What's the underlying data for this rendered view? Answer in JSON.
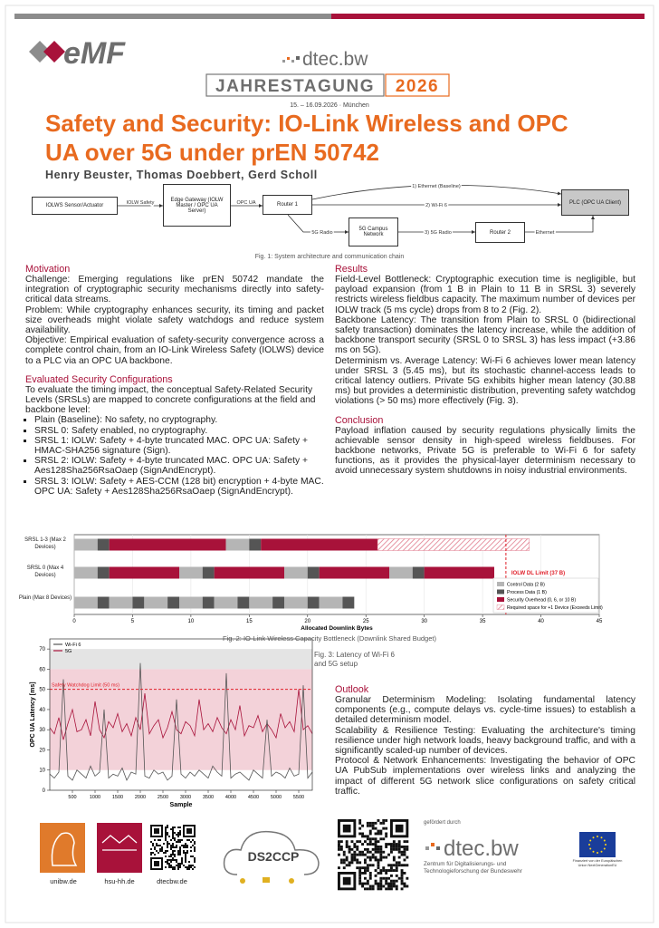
{
  "header": {
    "logo": "eMF",
    "brand": "dtec.bw",
    "event": "JAHRESTAGUNG",
    "year": "2026",
    "date": "15. – 16.09.2026 · München"
  },
  "title": "Safety and Security: IO-Link Wireless and OPC UA over 5G under prEN 50742",
  "authors": "Henry Beuster, Thomas Doebbert, Gerd Scholl",
  "figure1": {
    "nodes": [
      "IOLWS Sensor/Actuator",
      "Edge Gateway (IOLW Master / OPC UA Server)",
      "Router 1",
      "5G Campus Network",
      "Router 2",
      "PLC (OPC UA Client)"
    ],
    "edges": [
      "IOLW Safety",
      "OPC UA",
      "1) Ethernet (Baseline)",
      "2) Wi-Fi 6",
      "5G Radio",
      "3) 5G Radio",
      "Ethernet"
    ],
    "caption": "Fig. 1: System architecture and communication chain"
  },
  "motivation": {
    "heading": "Motivation",
    "paragraphs": [
      "Challenge: Emerging regulations like prEN 50742 mandate the integration of cryptographic security mechanisms directly into safety-critical data streams.",
      "Problem: While cryptography enhances security, its timing and packet size overheads might violate safety watchdogs and reduce system availability.",
      "Objective: Empirical evaluation of safety-security convergence across a complete control chain, from an IO-Link Wireless Safety (IOLWS) device to a PLC via an OPC UA backbone."
    ]
  },
  "configurations": {
    "heading": "Evaluated Security Configurations",
    "intro": "To evaluate the timing impact, the conceptual Safety-Related Security Levels (SRSLs) are mapped to concrete configurations at the field and backbone level:",
    "items": [
      "Plain (Baseline): No safety, no cryptography.",
      "SRSL 0: Safety enabled, no cryptography.",
      "SRSL 1: IOLW: Safety + 4-byte truncated MAC. OPC UA: Safety + HMAC-SHA256 signature (Sign).",
      "SRSL 2: IOLW: Safety + 4-byte truncated MAC. OPC UA: Safety + Aes128Sha256RsaOaep (SignAndEncrypt).",
      "SRSL 3: IOLW: Safety + AES-CCM (128 bit) encryption + 4-byte MAC. OPC UA: Safety + Aes128Sha256RsaOaep (SignAndEncrypt)."
    ]
  },
  "results": {
    "heading": "Results",
    "paragraphs": [
      "Field-Level Bottleneck: Cryptographic execution time is negligible, but payload expansion (from 1 B in Plain to 11 B in SRSL 3) severely restricts wireless fieldbus capacity. The maximum number of devices per IOLW track (5 ms cycle) drops from 8 to 2 (Fig. 2).",
      "Backbone Latency: The transition from Plain to SRSL 0 (bidirectional safety transaction) dominates the latency increase, while the addition of backbone transport security (SRSL 0 to SRSL 3) has less impact (+3.86 ms on 5G).",
      "Determinism vs. Average Latency: Wi-Fi 6 achieves lower mean latency under SRSL 3 (5.45 ms), but its stochastic channel-access leads to critical latency outliers. Private 5G exhibits higher mean latency (30.88 ms) but provides a deterministic distribution, preventing safety watchdog violations (> 50 ms) more effectively (Fig. 3)."
    ]
  },
  "conclusion": {
    "heading": "Conclusion",
    "paragraphs": [
      "Payload inflation caused by security regulations physically limits the achievable sensor density in high-speed wireless fieldbuses. For backbone networks, Private 5G is preferable to Wi-Fi 6 for safety functions, as it provides the physical-layer determinism necessary to avoid unnecessary system shutdowns in noisy industrial environments."
    ]
  },
  "outlook": {
    "heading": "Outlook",
    "paragraphs": [
      "Granular Determinism Modeling: Isolating fundamental latency components (e.g., compute delays vs. cycle-time issues) to establish a detailed determinism model.",
      "Scalability & Resilience Testing: Evaluating the architecture's timing resilience under high network loads, heavy background traffic, and with a significantly scaled-up number of devices.",
      "Protocol & Network Enhancements: Investigating the behavior of OPC UA PubSub implementations over wireless links and analyzing the impact of different 5G network slice configurations on safety critical traffic."
    ]
  },
  "chart_data": [
    {
      "type": "bar",
      "orientation": "horizontal",
      "stacked": true,
      "title": "Fig. 2: IO-Link Wireless Capacity Bottleneck (Downlink Shared Budget)",
      "x_label": "Allocated Downlink Bytes",
      "xlim": [
        0,
        45
      ],
      "xticks": [
        0,
        5,
        10,
        15,
        20,
        25,
        30,
        35,
        40,
        45
      ],
      "grid": true,
      "series": [
        {
          "name": "Control Data (2 B)",
          "color": "#b5b5b5"
        },
        {
          "name": "Process Data (1 B)",
          "color": "#555555"
        },
        {
          "name": "Security Overhead (0, 6, or 10 B)",
          "color": "#a8123a"
        },
        {
          "name": "Required space for +1 Device (Exceeds Limit)",
          "color": "#e07a8c",
          "hatched": true
        }
      ],
      "categories": [
        "SRSL 1-3 (Max 2 Devices)",
        "SRSL 0 (Max 4 Devices)",
        "Plain (Max 8 Devices)"
      ],
      "segments": [
        [
          {
            "series": 0,
            "value": 2
          },
          {
            "series": 1,
            "value": 1
          },
          {
            "series": 2,
            "value": 10
          },
          {
            "series": 0,
            "value": 2
          },
          {
            "series": 1,
            "value": 1
          },
          {
            "series": 2,
            "value": 10
          },
          {
            "series": 3,
            "value": 13
          }
        ],
        [
          {
            "series": 0,
            "value": 2
          },
          {
            "series": 1,
            "value": 1
          },
          {
            "series": 2,
            "value": 6
          },
          {
            "series": 0,
            "value": 2
          },
          {
            "series": 1,
            "value": 1
          },
          {
            "series": 2,
            "value": 6
          },
          {
            "series": 0,
            "value": 2
          },
          {
            "series": 1,
            "value": 1
          },
          {
            "series": 2,
            "value": 6
          },
          {
            "series": 0,
            "value": 2
          },
          {
            "series": 1,
            "value": 1
          },
          {
            "series": 2,
            "value": 6
          }
        ],
        [
          {
            "series": 0,
            "value": 2
          },
          {
            "series": 1,
            "value": 1
          },
          {
            "series": 0,
            "value": 2
          },
          {
            "series": 1,
            "value": 1
          },
          {
            "series": 0,
            "value": 2
          },
          {
            "series": 1,
            "value": 1
          },
          {
            "series": 0,
            "value": 2
          },
          {
            "series": 1,
            "value": 1
          },
          {
            "series": 0,
            "value": 2
          },
          {
            "series": 1,
            "value": 1
          },
          {
            "series": 0,
            "value": 2
          },
          {
            "series": 1,
            "value": 1
          },
          {
            "series": 0,
            "value": 2
          },
          {
            "series": 1,
            "value": 1
          },
          {
            "series": 0,
            "value": 2
          },
          {
            "series": 1,
            "value": 1
          }
        ]
      ],
      "reference_line": {
        "value": 37,
        "label": "IOLW DL Limit (37 B)",
        "color": "#e0202a"
      },
      "legend": "lower right"
    },
    {
      "type": "line",
      "title": "Fig. 3: Latency of Wi-Fi 6 and 5G setup",
      "x_label": "Sample",
      "y_label": "OPC UA Latency [ms]",
      "x": [
        0,
        100,
        200,
        300,
        400,
        500,
        600,
        700,
        800,
        900,
        1000,
        1100,
        1200,
        1300,
        1400,
        1500,
        1600,
        1700,
        1800,
        1900,
        2000,
        2100,
        2200,
        2300,
        2400,
        2500,
        2600,
        2700,
        2800,
        2900,
        3000,
        3100,
        3200,
        3300,
        3400,
        3500,
        3600,
        3700,
        3800,
        3900,
        4000,
        4100,
        4200,
        4300,
        4400,
        4500,
        4600,
        4700,
        4800,
        4900,
        5000,
        5100,
        5200,
        5300,
        5400,
        5500,
        5600,
        5700,
        5800
      ],
      "series": [
        {
          "name": "Wi-Fi 6",
          "color": "#555555",
          "values": [
            8,
            6,
            9,
            55,
            7,
            5,
            10,
            8,
            6,
            12,
            7,
            9,
            40,
            6,
            8,
            7,
            11,
            5,
            9,
            8,
            63,
            7,
            6,
            10,
            8,
            9,
            5,
            7,
            45,
            8,
            6,
            9,
            7,
            10,
            8,
            6,
            12,
            9,
            7,
            58,
            6,
            8,
            9,
            7,
            5,
            10,
            8,
            6,
            35,
            7,
            9,
            8,
            6,
            11,
            7,
            8,
            52,
            6,
            9
          ]
        },
        {
          "name": "5G",
          "color": "#a8123a",
          "values": [
            31,
            28,
            36,
            25,
            33,
            40,
            29,
            30,
            35,
            27,
            44,
            30,
            26,
            34,
            31,
            38,
            29,
            33,
            27,
            36,
            30,
            48,
            28,
            32,
            35,
            26,
            31,
            39,
            30,
            28,
            34,
            32,
            27,
            45,
            30,
            33,
            29,
            36,
            31,
            28,
            35,
            30,
            42,
            27,
            32,
            31,
            37,
            29,
            33,
            30,
            26,
            38,
            31,
            34,
            29,
            50,
            30,
            32,
            28
          ]
        }
      ],
      "xlim": [
        0,
        5800
      ],
      "ylim": [
        0,
        75
      ],
      "xticks": [
        500,
        1000,
        1500,
        2000,
        2500,
        3000,
        3500,
        4000,
        4500,
        5000,
        5500
      ],
      "yticks": [
        0,
        10,
        20,
        30,
        40,
        50,
        60,
        70
      ],
      "shaded_ranges": [
        {
          "from": 60,
          "to": 70,
          "color": "#e4e4e4"
        },
        {
          "from": 10,
          "to": 60,
          "color": "#f3d2d9"
        }
      ],
      "reference_line": {
        "value": 50,
        "label": "Safety Watchdog Limit (50 ms)",
        "color": "#e0202a"
      },
      "legend": "upper left"
    }
  ],
  "footer": {
    "partners": [
      "unibw.de",
      "hsu-hh.de",
      "dtecbw.de"
    ],
    "project": "DS2CCP",
    "funded_by": "gefördert durch",
    "funder": "dtec.bw",
    "funder_name": "Zentrum für Digitalisierungs- und Technologieforschung der Bundeswehr",
    "eu": "Finanziert von der Europäischen Union NextGenerationEU"
  }
}
